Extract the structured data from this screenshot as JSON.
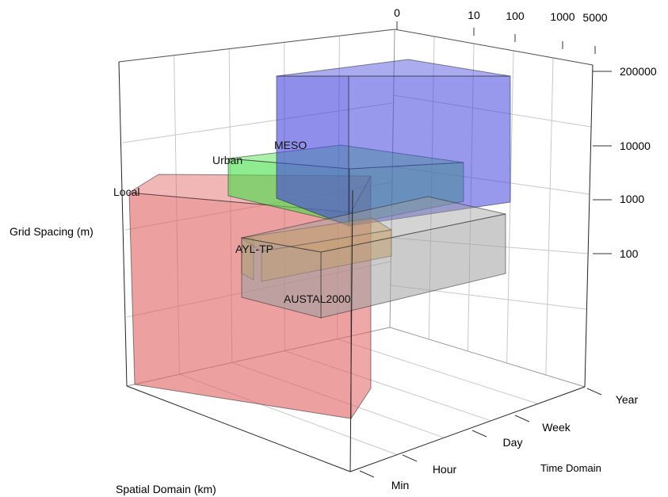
{
  "chart_data": {
    "type": "3d-box",
    "axes": {
      "spatial": {
        "label": "Spatial Domain (km)",
        "ticks": [
          "0",
          "10",
          "100",
          "1000",
          "5000"
        ]
      },
      "grid": {
        "label": "Grid Spacing (m)",
        "ticks": [
          "100",
          "1000",
          "10000",
          "200000"
        ]
      },
      "time": {
        "label": "Time Domain",
        "ticks": [
          "Min",
          "Hour",
          "Day",
          "Week",
          "Year"
        ]
      }
    },
    "models": [
      {
        "name": "Local",
        "color": "#e06060",
        "spatial": [
          0,
          10
        ],
        "grid": [
          50,
          1000
        ],
        "time": [
          "Min",
          "Year"
        ]
      },
      {
        "name": "Urban",
        "color": "#44dd44",
        "spatial": [
          10,
          100
        ],
        "grid": [
          1000,
          10000
        ],
        "time": [
          "Min",
          "Day"
        ]
      },
      {
        "name": "MESO",
        "color": "#4444dd",
        "spatial": [
          10,
          5000
        ],
        "grid": [
          1000,
          200000
        ],
        "time": [
          "Hour",
          "Year"
        ]
      },
      {
        "name": "AYL-TP",
        "color": "#e6a030",
        "spatial": [
          1,
          10
        ],
        "grid": [
          100,
          1000
        ],
        "time": [
          "Min",
          "Day"
        ]
      },
      {
        "name": "AUSTAL2000",
        "color": "#a0a0a0",
        "spatial": [
          1,
          100
        ],
        "grid": [
          20,
          1000
        ],
        "time": [
          "Min",
          "Year"
        ]
      }
    ]
  }
}
